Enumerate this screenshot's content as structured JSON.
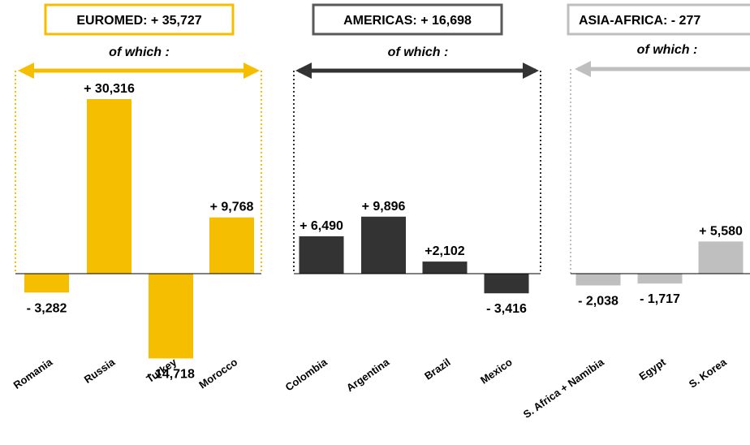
{
  "colors": {
    "euromed": "#F5BE00",
    "americas": "#333333",
    "asia_africa": "#BFBFBF",
    "background": "#FFFFFF",
    "text": "#000000"
  },
  "chart_data": [
    {
      "type": "bar",
      "group": "EUROMED",
      "title": "EUROMED: + 35,727",
      "subtitle": "of which :",
      "categories": [
        "Romania",
        "Russia",
        "Turkey",
        "Morocco"
      ],
      "values": [
        -3282,
        30316,
        -14718,
        9768
      ],
      "value_labels": [
        "- 3,282",
        "+ 30,316",
        "- 14,718",
        "+ 9,768"
      ],
      "color": "#F5BE00",
      "grid": false
    },
    {
      "type": "bar",
      "group": "AMERICAS",
      "title": "AMERICAS: + 16,698",
      "subtitle": "of which :",
      "categories": [
        "Colombia",
        "Argentina",
        "Brazil",
        "Mexico"
      ],
      "values": [
        6490,
        9896,
        2102,
        -3416
      ],
      "value_labels": [
        "+ 6,490",
        "+ 9,896",
        "+2,102",
        "- 3,416"
      ],
      "color": "#333333",
      "grid": false
    },
    {
      "type": "bar",
      "group": "ASIA-AFRICA",
      "title": "ASIA-AFRICA: - 277",
      "subtitle": "of which :",
      "categories": [
        "S. Africa + Namibia",
        "Egypt",
        "S. Korea"
      ],
      "values": [
        -2038,
        -1717,
        5580
      ],
      "value_labels": [
        "- 2,038",
        "- 1,717",
        "+ 5,580"
      ],
      "color": "#BFBFBF",
      "grid": false
    }
  ]
}
